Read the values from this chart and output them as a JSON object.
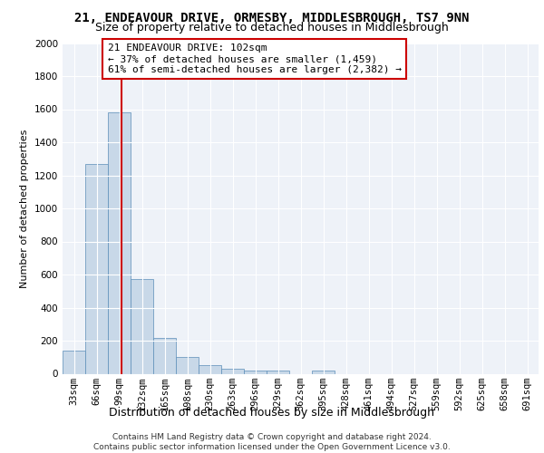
{
  "title1": "21, ENDEAVOUR DRIVE, ORMESBY, MIDDLESBROUGH, TS7 9NN",
  "title2": "Size of property relative to detached houses in Middlesbrough",
  "xlabel": "Distribution of detached houses by size in Middlesbrough",
  "ylabel": "Number of detached properties",
  "bin_labels": [
    "33sqm",
    "66sqm",
    "99sqm",
    "132sqm",
    "165sqm",
    "198sqm",
    "230sqm",
    "263sqm",
    "296sqm",
    "329sqm",
    "362sqm",
    "395sqm",
    "428sqm",
    "461sqm",
    "494sqm",
    "527sqm",
    "559sqm",
    "592sqm",
    "625sqm",
    "658sqm",
    "691sqm"
  ],
  "bin_edges": [
    16.5,
    49.5,
    82.5,
    115.5,
    148.5,
    181.5,
    214.5,
    247.5,
    280.5,
    313.5,
    346.5,
    379.5,
    412.5,
    445.5,
    478.5,
    511.5,
    544.5,
    577.5,
    610.5,
    643.5,
    676.5,
    709.5
  ],
  "bar_heights": [
    140,
    1270,
    1580,
    570,
    215,
    100,
    50,
    30,
    20,
    20,
    0,
    20,
    0,
    0,
    0,
    0,
    0,
    0,
    0,
    0,
    0
  ],
  "bar_color": "#c8d8e8",
  "bar_edge_color": "#5b8db8",
  "background_color": "#eef2f8",
  "grid_color": "#ffffff",
  "property_size": 102,
  "vline_color": "#cc0000",
  "annotation_line1": "21 ENDEAVOUR DRIVE: 102sqm",
  "annotation_line2": "← 37% of detached houses are smaller (1,459)",
  "annotation_line3": "61% of semi-detached houses are larger (2,382) →",
  "annotation_box_color": "#ffffff",
  "annotation_box_edge_color": "#cc0000",
  "ylim": [
    0,
    2000
  ],
  "yticks": [
    0,
    200,
    400,
    600,
    800,
    1000,
    1200,
    1400,
    1600,
    1800,
    2000
  ],
  "footer_text": "Contains HM Land Registry data © Crown copyright and database right 2024.\nContains public sector information licensed under the Open Government Licence v3.0.",
  "title1_fontsize": 10,
  "title2_fontsize": 9,
  "ylabel_fontsize": 8,
  "xlabel_fontsize": 9,
  "tick_fontsize": 7.5,
  "annotation_fontsize": 8,
  "footer_fontsize": 6.5
}
